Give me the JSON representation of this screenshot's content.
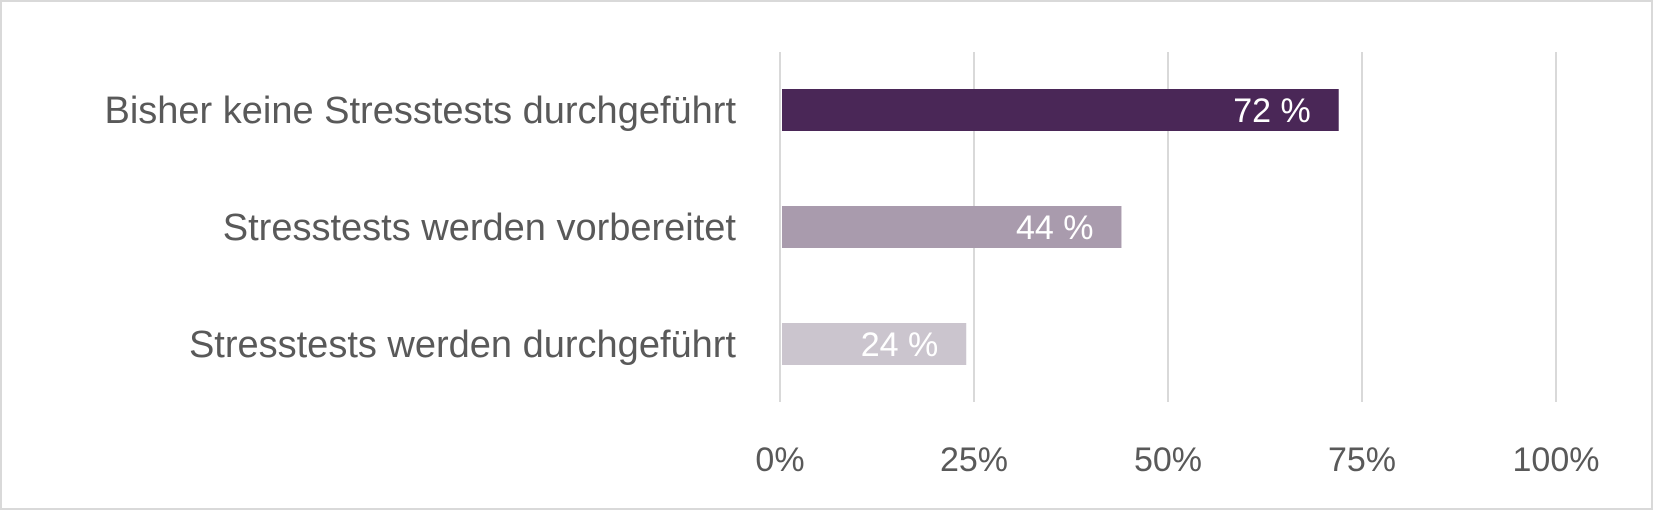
{
  "chart_data": {
    "type": "bar",
    "orientation": "horizontal",
    "categories": [
      "Bisher keine Stresstests durchgeführt",
      "Stresstests werden vorbereitet",
      "Stresstests werden durchgeführt"
    ],
    "values": [
      72,
      44,
      24
    ],
    "data_labels": [
      "72 %",
      "44 %",
      "24 %"
    ],
    "bar_colors": [
      "#4a2757",
      "#a99bad",
      "#cbc5ce"
    ],
    "xlim": [
      0,
      100
    ],
    "x_ticks": [
      0,
      25,
      50,
      75,
      100
    ],
    "x_tick_labels": [
      "0%",
      "25%",
      "50%",
      "75%",
      "100%"
    ],
    "grid": true,
    "grid_color": "#d9d9d9",
    "legend": "none"
  }
}
